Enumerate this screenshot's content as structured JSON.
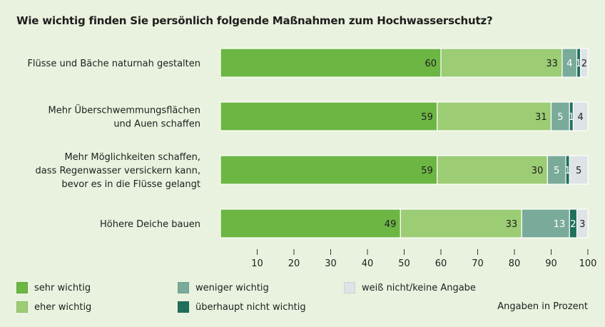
{
  "chart_data": {
    "type": "bar",
    "orientation": "horizontal",
    "stacked": true,
    "title": "Wie wichtig finden Sie persönlich folgende Maßnahmen zum Hochwasserschutz?",
    "categories": [
      [
        "Flüsse und Bäche naturnah gestalten"
      ],
      [
        "Mehr Überschwemmungsflächen",
        "und Auen schaffen"
      ],
      [
        "Mehr Möglichkeiten schaffen,",
        "dass Regenwasser versickern kann,",
        "bevor es in die Flüsse gelangt"
      ],
      [
        "Höhere Deiche bauen"
      ]
    ],
    "series": [
      {
        "name": "sehr wichtig",
        "color": "#6cb644",
        "label_color": "#1e1e1e",
        "values": [
          60,
          59,
          59,
          49
        ]
      },
      {
        "name": "eher wichtig",
        "color": "#9ccc74",
        "label_color": "#1e1e1e",
        "values": [
          33,
          31,
          30,
          33
        ]
      },
      {
        "name": "weniger wichtig",
        "color": "#7aab9a",
        "label_color": "#ffffff",
        "values": [
          4,
          5,
          5,
          13
        ]
      },
      {
        "name": "überhaupt nicht wichtig",
        "color": "#1f6f5c",
        "label_color": "#ffffff",
        "values": [
          1,
          1,
          1,
          2
        ]
      },
      {
        "name": "weiß nicht/keine Angabe",
        "color": "#dde3e6",
        "label_color": "#1e1e1e",
        "values": [
          2,
          4,
          5,
          3
        ]
      }
    ],
    "xlim": [
      0,
      100
    ],
    "xticks": [
      10,
      20,
      30,
      40,
      50,
      60,
      70,
      80,
      90,
      100
    ],
    "xlabel": "",
    "ylabel": "",
    "unit_note": "Angaben in Prozent",
    "legend_position": "bottom"
  },
  "legend": [
    {
      "label": "sehr wichtig",
      "color": "#6cb644"
    },
    {
      "label": "weniger wichtig",
      "color": "#7aab9a"
    },
    {
      "label": "weiß nicht/keine Angabe",
      "color": "#dde3e6"
    },
    {
      "label": "eher wichtig",
      "color": "#9ccc74"
    },
    {
      "label": "überhaupt nicht wichtig",
      "color": "#1f6f5c"
    }
  ]
}
